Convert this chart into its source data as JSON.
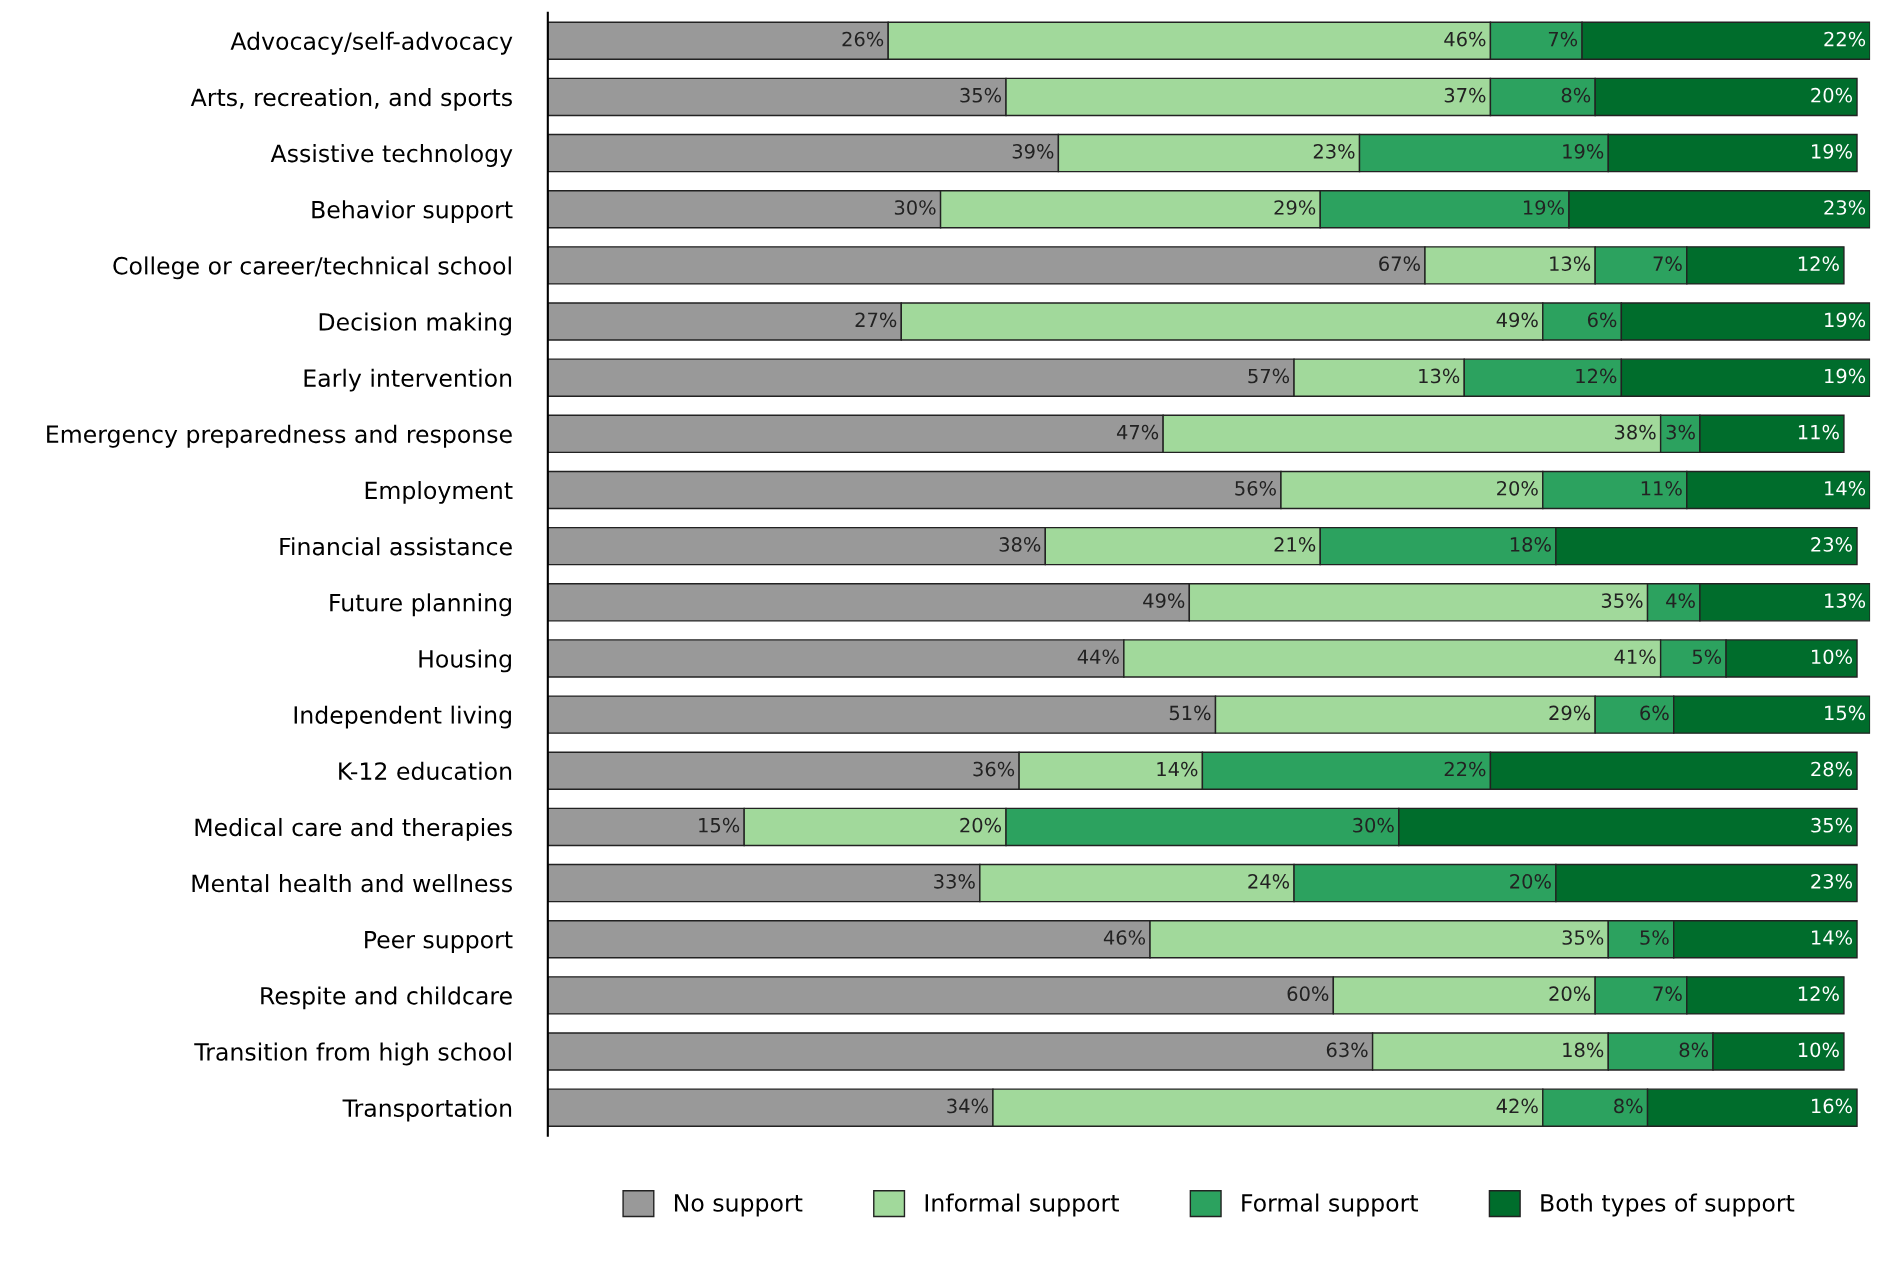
{
  "chart_data": {
    "type": "bar",
    "orientation": "horizontal",
    "stacked": true,
    "legend": "bottom",
    "tick_labels": "y",
    "categories": [
      "Advocacy/self-advocacy",
      "Arts, recreation, and sports",
      "Assistive technology",
      "Behavior support",
      "College or career/technical school",
      "Decision making",
      "Early intervention",
      "Emergency preparedness and response",
      "Employment",
      "Financial assistance",
      "Future planning",
      "Housing",
      "Independent living",
      "K-12 education",
      "Medical care and therapies",
      "Mental health and wellness",
      "Peer support",
      "Respite and childcare",
      "Transition from high school",
      "Transportation"
    ],
    "series": [
      {
        "name": "No support",
        "color": "#999999",
        "values": [
          26,
          35,
          39,
          30,
          67,
          27,
          57,
          47,
          56,
          38,
          49,
          44,
          51,
          36,
          15,
          33,
          46,
          60,
          63,
          34
        ],
        "value_labels": [
          "26%",
          "35%",
          "39%",
          "30%",
          "67%",
          "27%",
          "57%",
          "47%",
          "56%",
          "38%",
          "49%",
          "44%",
          "51%",
          "36%",
          "15%",
          "33%",
          "46%",
          "60%",
          "63%",
          "34%"
        ]
      },
      {
        "name": "Informal support",
        "color": "#a1d99b",
        "values": [
          46,
          37,
          23,
          29,
          13,
          49,
          13,
          38,
          20,
          21,
          35,
          41,
          29,
          14,
          20,
          24,
          35,
          20,
          18,
          42
        ],
        "value_labels": [
          "46%",
          "37%",
          "23%",
          "29%",
          "13%",
          "49%",
          "13%",
          "38%",
          "20%",
          "21%",
          "35%",
          "41%",
          "29%",
          "14%",
          "20%",
          "24%",
          "35%",
          "20%",
          "18%",
          "42%"
        ]
      },
      {
        "name": "Formal support",
        "color": "#2ca25f",
        "values": [
          7,
          8,
          19,
          19,
          7,
          6,
          12,
          3,
          11,
          18,
          4,
          5,
          6,
          22,
          30,
          20,
          5,
          7,
          8,
          8
        ],
        "value_labels": [
          "7%",
          "8%",
          "19%",
          "19%",
          "7%",
          "6%",
          "12%",
          "3%",
          "11%",
          "18%",
          "4%",
          "5%",
          "6%",
          "22%",
          "30%",
          "20%",
          "5%",
          "7%",
          "8%",
          "8%"
        ]
      },
      {
        "name": "Both types of support",
        "color": "#006d2c",
        "values": [
          22,
          20,
          19,
          23,
          12,
          19,
          19,
          11,
          14,
          23,
          13,
          10,
          15,
          28,
          35,
          23,
          14,
          12,
          10,
          16
        ],
        "value_labels": [
          "22%",
          "20%",
          "19%",
          "23%",
          "12%",
          "19%",
          "19%",
          "11%",
          "14%",
          "23%",
          "13%",
          "10%",
          "15%",
          "28%",
          "35%",
          "23%",
          "14%",
          "12%",
          "10%",
          "16%"
        ]
      }
    ]
  }
}
